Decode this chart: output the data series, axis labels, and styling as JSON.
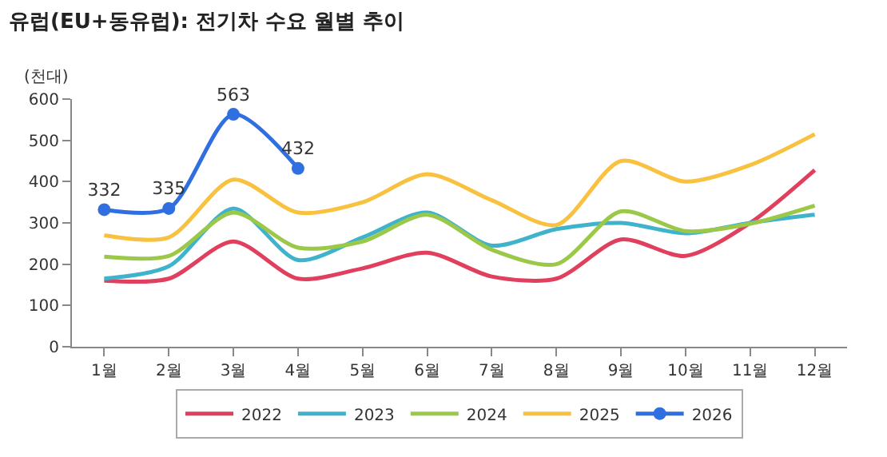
{
  "chart_data": {
    "type": "line",
    "title": "유럽(EU+동유럽): 전기차 수요 월별 추이",
    "ylabel": "(천대)",
    "categories": [
      "1월",
      "2월",
      "3월",
      "4월",
      "5월",
      "6월",
      "7월",
      "8월",
      "9월",
      "10월",
      "11월",
      "12월"
    ],
    "series": [
      {
        "name": "2022",
        "color": "#e0405e",
        "values": [
          160,
          165,
          255,
          165,
          190,
          228,
          170,
          165,
          260,
          220,
          300,
          428
        ]
      },
      {
        "name": "2023",
        "color": "#3fb3cc",
        "values": [
          165,
          195,
          335,
          210,
          265,
          325,
          245,
          285,
          300,
          275,
          300,
          320
        ]
      },
      {
        "name": "2024",
        "color": "#9cc84a",
        "values": [
          218,
          220,
          325,
          240,
          255,
          320,
          235,
          200,
          328,
          280,
          298,
          342
        ]
      },
      {
        "name": "2025",
        "color": "#f8c240",
        "values": [
          270,
          265,
          405,
          325,
          350,
          418,
          355,
          295,
          450,
          400,
          440,
          515
        ]
      },
      {
        "name": "2026",
        "color": "#2f6fe0",
        "marker": "circle",
        "values": [
          332,
          335,
          563,
          432,
          null,
          null,
          null,
          null,
          null,
          null,
          null,
          null
        ],
        "value_labels": [
          "332",
          "335",
          "563",
          "432",
          null,
          null,
          null,
          null,
          null,
          null,
          null,
          null
        ]
      }
    ],
    "ylim": [
      0,
      600
    ],
    "yticks": [
      0,
      100,
      200,
      300,
      400,
      500,
      600
    ],
    "legend": "bottom",
    "line_style": "solid"
  }
}
